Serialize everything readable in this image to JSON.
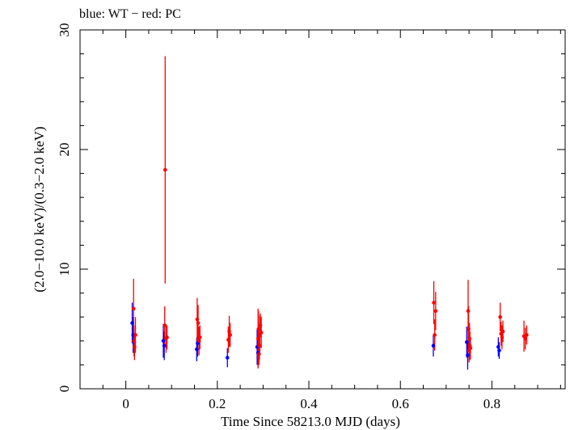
{
  "chart_data": {
    "type": "scatter",
    "title": "blue: WT − red: PC",
    "xlabel": "Time Since 58213.0 MJD (days)",
    "ylabel": "(2.0−10.0 keV)/(0.3−2.0 keV)",
    "xlim": [
      -0.1,
      0.96
    ],
    "ylim": [
      0,
      30
    ],
    "xticks": [
      0,
      0.2,
      0.4,
      0.6,
      0.8
    ],
    "xtick_labels": [
      "0",
      "0.2",
      "0.4",
      "0.6",
      "0.8"
    ],
    "yticks": [
      0,
      10,
      20,
      30
    ],
    "ytick_labels": [
      "0",
      "10",
      "20",
      "30"
    ],
    "grid": false,
    "series": [
      {
        "name": "WT",
        "color": "#0000ff",
        "points": [
          {
            "x": 0.014,
            "y": 5.5,
            "err": 1.7
          },
          {
            "x": 0.016,
            "y": 4.5,
            "err": 1.5
          },
          {
            "x": 0.082,
            "y": 4.0,
            "err": 1.4
          },
          {
            "x": 0.084,
            "y": 3.6,
            "err": 1.2
          },
          {
            "x": 0.155,
            "y": 3.3,
            "err": 1.0
          },
          {
            "x": 0.157,
            "y": 3.8,
            "err": 1.1
          },
          {
            "x": 0.222,
            "y": 2.6,
            "err": 0.8
          },
          {
            "x": 0.287,
            "y": 3.5,
            "err": 1.5
          },
          {
            "x": 0.289,
            "y": 3.0,
            "err": 1.2
          },
          {
            "x": 0.672,
            "y": 3.6,
            "err": 0.9
          },
          {
            "x": 0.745,
            "y": 3.9,
            "err": 1.3
          },
          {
            "x": 0.747,
            "y": 2.8,
            "err": 1.2
          },
          {
            "x": 0.814,
            "y": 3.5,
            "err": 0.8
          },
          {
            "x": 0.816,
            "y": 3.2,
            "err": 0.7
          }
        ]
      },
      {
        "name": "PC",
        "color": "#ff0000",
        "points": [
          {
            "x": 0.017,
            "y": 6.7,
            "err": 2.5
          },
          {
            "x": 0.018,
            "y": 4.0,
            "err": 1.3
          },
          {
            "x": 0.019,
            "y": 3.5,
            "err": 1.1
          },
          {
            "x": 0.021,
            "y": 4.5,
            "err": 1.5
          },
          {
            "x": 0.086,
            "y": 18.3,
            "err": 9.5
          },
          {
            "x": 0.085,
            "y": 5.3,
            "err": 1.6
          },
          {
            "x": 0.088,
            "y": 4.2,
            "err": 1.2
          },
          {
            "x": 0.09,
            "y": 4.3,
            "err": 1.0
          },
          {
            "x": 0.156,
            "y": 5.8,
            "err": 1.8
          },
          {
            "x": 0.158,
            "y": 5.5,
            "err": 1.5
          },
          {
            "x": 0.16,
            "y": 4.0,
            "err": 1.2
          },
          {
            "x": 0.162,
            "y": 4.3,
            "err": 1.0
          },
          {
            "x": 0.224,
            "y": 4.1,
            "err": 1.1
          },
          {
            "x": 0.226,
            "y": 4.8,
            "err": 1.3
          },
          {
            "x": 0.228,
            "y": 4.5,
            "err": 1.0
          },
          {
            "x": 0.289,
            "y": 4.2,
            "err": 2.5
          },
          {
            "x": 0.29,
            "y": 5.0,
            "err": 1.5
          },
          {
            "x": 0.291,
            "y": 2.9,
            "err": 0.9
          },
          {
            "x": 0.292,
            "y": 3.6,
            "err": 1.2
          },
          {
            "x": 0.293,
            "y": 4.5,
            "err": 1.6
          },
          {
            "x": 0.294,
            "y": 5.3,
            "err": 1.0
          },
          {
            "x": 0.296,
            "y": 4.7,
            "err": 1.3
          },
          {
            "x": 0.673,
            "y": 7.2,
            "err": 1.8
          },
          {
            "x": 0.675,
            "y": 4.5,
            "err": 1.3
          },
          {
            "x": 0.677,
            "y": 6.5,
            "err": 1.6
          },
          {
            "x": 0.748,
            "y": 6.5,
            "err": 2.6
          },
          {
            "x": 0.749,
            "y": 5.0,
            "err": 1.9
          },
          {
            "x": 0.75,
            "y": 3.2,
            "err": 1.0
          },
          {
            "x": 0.751,
            "y": 4.2,
            "err": 1.3
          },
          {
            "x": 0.752,
            "y": 3.6,
            "err": 1.2
          },
          {
            "x": 0.753,
            "y": 3.4,
            "err": 0.9
          },
          {
            "x": 0.818,
            "y": 6.0,
            "err": 1.2
          },
          {
            "x": 0.82,
            "y": 4.6,
            "err": 1.0
          },
          {
            "x": 0.822,
            "y": 4.3,
            "err": 1.0
          },
          {
            "x": 0.824,
            "y": 4.8,
            "err": 0.9
          },
          {
            "x": 0.87,
            "y": 4.4,
            "err": 1.3
          },
          {
            "x": 0.873,
            "y": 4.2,
            "err": 0.9
          },
          {
            "x": 0.876,
            "y": 4.5,
            "err": 0.8
          }
        ]
      }
    ]
  }
}
